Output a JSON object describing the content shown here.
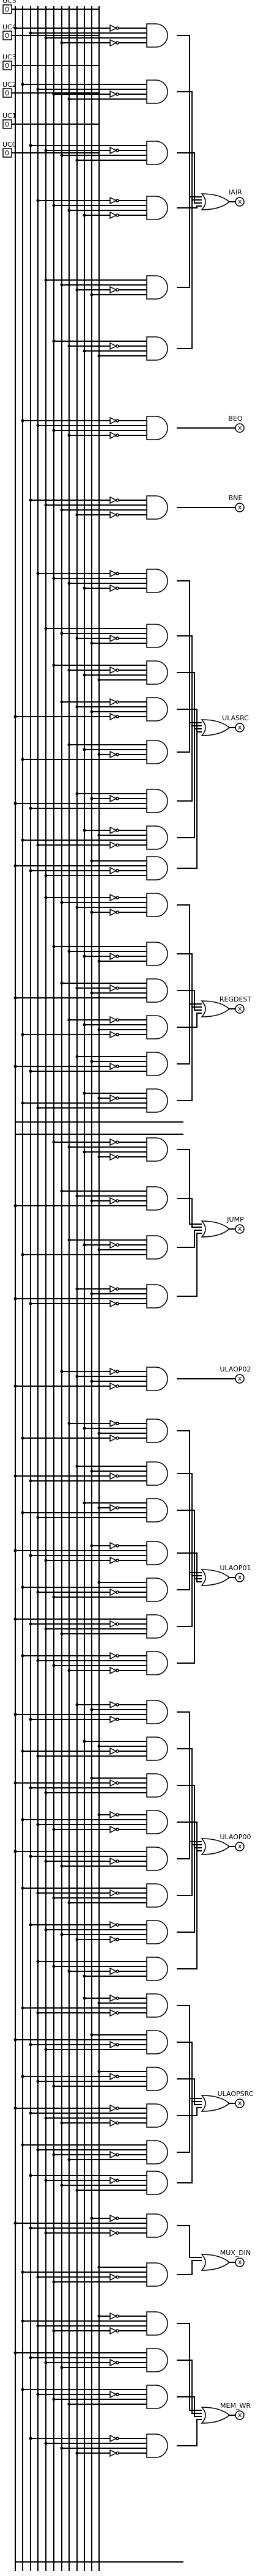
{
  "inputs": [
    "UC5",
    "UC4",
    "UC3",
    "UC2",
    "UC1",
    "UC0"
  ],
  "outputs": [
    "IAIR",
    "BEQ",
    "BNE",
    "ULASRC",
    "REGDEST",
    "JUMP",
    "ULAOP02",
    "ULAOP01",
    "ULAOP00",
    "ULAOPSRC",
    "MUX_DIN",
    "MEM_WR"
  ]
}
